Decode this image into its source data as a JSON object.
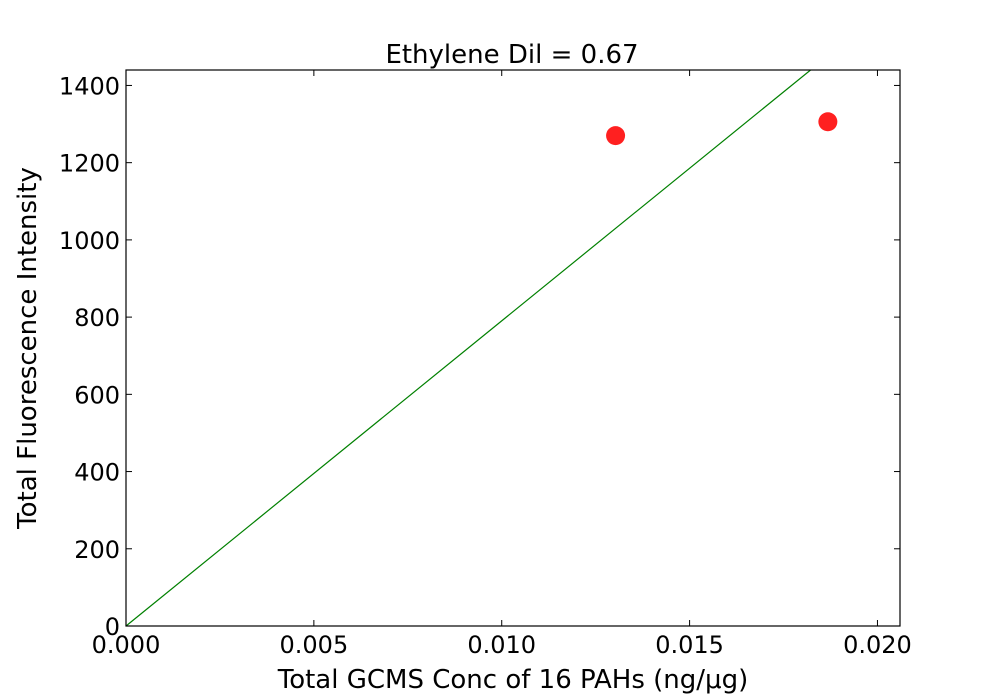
{
  "chart_data": {
    "type": "scatter",
    "title": "Ethylene Dil = 0.67",
    "xlabel": "Total GCMS Conc of 16 PAHs (ng/μg)",
    "ylabel": "Total Fluorescence Intensity",
    "xlim": [
      0.0,
      0.0206
    ],
    "ylim": [
      0,
      1440
    ],
    "xticks": [
      0.0,
      0.005,
      0.01,
      0.015,
      0.02
    ],
    "xtick_labels": [
      "0.000",
      "0.005",
      "0.010",
      "0.015",
      "0.020"
    ],
    "yticks": [
      0,
      200,
      400,
      600,
      800,
      1000,
      1200,
      1400
    ],
    "ytick_labels": [
      "0",
      "200",
      "400",
      "600",
      "800",
      "1000",
      "1200",
      "1400"
    ],
    "grid": false,
    "series": [
      {
        "type": "scatter",
        "color": "#ff2020",
        "points": [
          {
            "x": 0.01303,
            "y": 1270
          },
          {
            "x": 0.01868,
            "y": 1306
          }
        ]
      },
      {
        "type": "line",
        "color": "#008000",
        "points": [
          {
            "x": 0.0,
            "y": 0
          },
          {
            "x": 0.01822,
            "y": 1440
          }
        ]
      }
    ]
  }
}
